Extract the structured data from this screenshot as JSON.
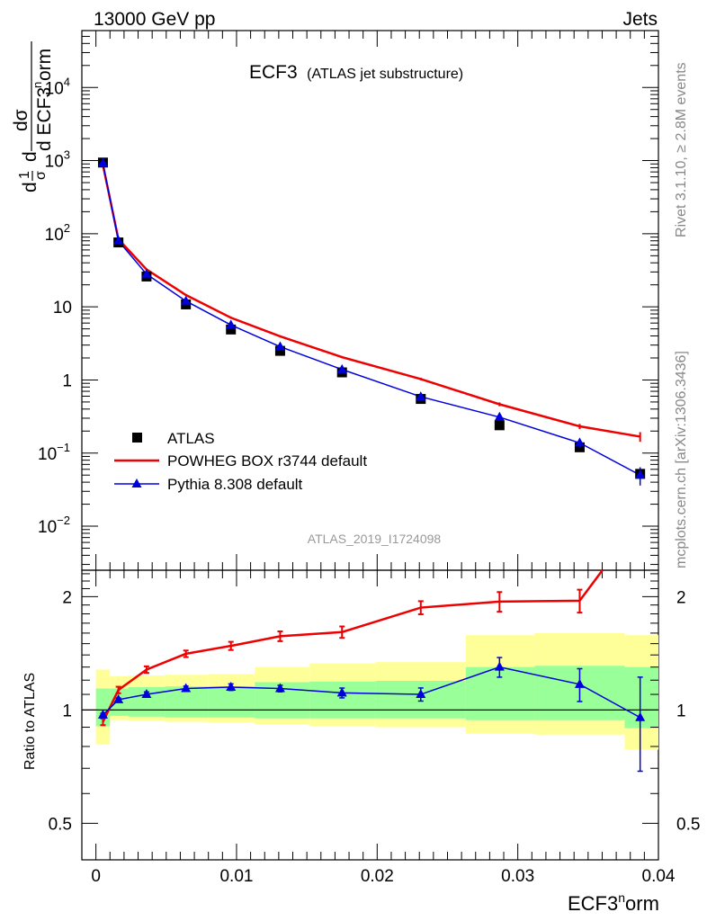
{
  "header": {
    "energy_label": "13000 GeV pp",
    "process_label": "Jets",
    "side_label_top": "Rivet 3.1.10, ≥ 2.8M events",
    "side_label_bottom": "mcplots.cern.ch [arXiv:1306.3436]"
  },
  "chart_data": [
    {
      "type": "line",
      "title_main": "ECF3",
      "title_sub": "(ATLAS jet substructure)",
      "watermark": "ATLAS_2019_I1724098",
      "ylabel": "1/σ dσ/d ECF3norm",
      "yscale": "log",
      "ylim": [
        0.0025,
        60000
      ],
      "xlim": [
        -0.001,
        0.04
      ],
      "y_ticks": [
        {
          "value": 0.01,
          "base": "10",
          "exp": "−2"
        },
        {
          "value": 0.1,
          "base": "10",
          "exp": "−1"
        },
        {
          "value": 1,
          "base": "1",
          "exp": ""
        },
        {
          "value": 10,
          "base": "10",
          "exp": ""
        },
        {
          "value": 100,
          "base": "10",
          "exp": "2"
        },
        {
          "value": 1000,
          "base": "10",
          "exp": "3"
        },
        {
          "value": 10000,
          "base": "10",
          "exp": "4"
        }
      ],
      "x": [
        0.0005,
        0.0016,
        0.0036,
        0.0064,
        0.0096,
        0.0131,
        0.0175,
        0.0231,
        0.0287,
        0.0344,
        0.0387
      ],
      "x_bin_edges": [
        0.0,
        0.001,
        0.0023,
        0.0049,
        0.008,
        0.0113,
        0.0152,
        0.0199,
        0.0263,
        0.0312,
        0.0376,
        0.04
      ],
      "series": [
        {
          "name": "ATLAS",
          "marker": "square",
          "color": "#000000",
          "values": [
            940,
            76,
            26,
            10.8,
            4.9,
            2.5,
            1.27,
            0.55,
            0.24,
            0.12,
            0.052
          ]
        },
        {
          "name": "POWHEG BOX r3744 default",
          "marker": "line",
          "color": "#ee0000",
          "values": [
            870,
            84,
            32.5,
            14.5,
            7.1,
            3.95,
            2.05,
            1.03,
            0.465,
            0.232,
            0.168
          ],
          "err_rel": [
            0.02,
            0.02,
            0.02,
            0.025,
            0.03,
            0.03,
            0.035,
            0.04,
            0.06,
            0.08,
            0.15
          ]
        },
        {
          "name": "Pythia 8.308 default",
          "marker": "triangle",
          "color": "#0000dd",
          "values": [
            920,
            80,
            28,
            12,
            5.65,
            2.85,
            1.39,
            0.59,
            0.31,
            0.138,
            0.05
          ],
          "err_rel": [
            0.01,
            0.01,
            0.015,
            0.02,
            0.025,
            0.03,
            0.03,
            0.04,
            0.06,
            0.12,
            0.28
          ]
        }
      ]
    },
    {
      "type": "line",
      "ylabel": "Ratio to ATLAS",
      "xlabel": "ECF3norm",
      "yscale": "log",
      "ylim": [
        0.4,
        2.35
      ],
      "xlim": [
        -0.001,
        0.04
      ],
      "y_ticks": [
        0.5,
        1,
        2
      ],
      "x_ticks": [
        0,
        0.01,
        0.02,
        0.03,
        0.04
      ],
      "x_tick_labels": [
        "0",
        "0.01",
        "0.02",
        "0.03",
        "0.04"
      ],
      "bands": [
        {
          "name": "uncertainty-outer",
          "color": "#ffff99",
          "low": [
            0.81,
            0.94,
            0.935,
            0.93,
            0.925,
            0.915,
            0.905,
            0.9,
            0.865,
            0.86,
            0.785
          ],
          "high": [
            1.28,
            1.23,
            1.235,
            1.24,
            1.245,
            1.3,
            1.33,
            1.34,
            1.58,
            1.6,
            1.58
          ]
        },
        {
          "name": "uncertainty-inner",
          "color": "#99ff99",
          "low": [
            0.905,
            0.965,
            0.96,
            0.955,
            0.955,
            0.95,
            0.95,
            0.95,
            0.94,
            0.94,
            0.895
          ],
          "high": [
            1.14,
            1.14,
            1.15,
            1.155,
            1.155,
            1.185,
            1.19,
            1.195,
            1.3,
            1.31,
            1.3
          ]
        }
      ],
      "series": [
        {
          "name": "POWHEG BOX r3744 default",
          "color": "#ee0000",
          "values": [
            0.93,
            1.13,
            1.28,
            1.41,
            1.48,
            1.57,
            1.61,
            1.87,
            1.94,
            1.95,
            3.2
          ],
          "err_rel": [
            0.02,
            0.02,
            0.02,
            0.02,
            0.025,
            0.03,
            0.035,
            0.04,
            0.06,
            0.07,
            0.15
          ]
        },
        {
          "name": "Pythia 8.308 default",
          "color": "#0000dd",
          "values": [
            0.97,
            1.065,
            1.1,
            1.14,
            1.15,
            1.14,
            1.11,
            1.1,
            1.3,
            1.17,
            0.955
          ],
          "err_rel": [
            0.01,
            0.01,
            0.015,
            0.015,
            0.02,
            0.02,
            0.03,
            0.04,
            0.06,
            0.1,
            0.28
          ]
        }
      ]
    }
  ]
}
